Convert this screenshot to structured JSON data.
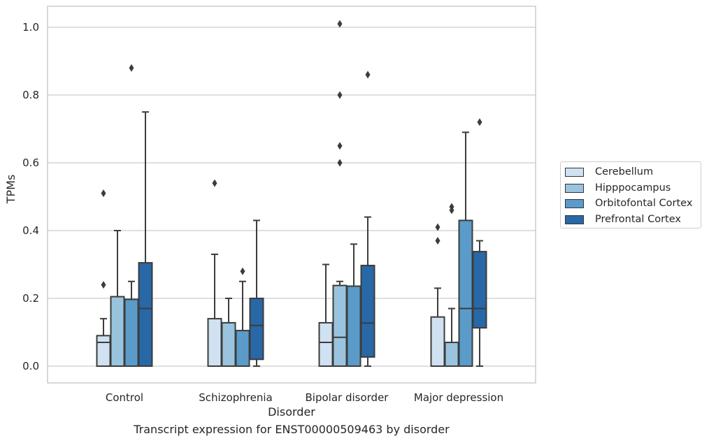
{
  "chart_data": {
    "type": "boxplot",
    "caption": "Transcript expression for ENST00000509463 by disorder",
    "xlabel": "Disorder",
    "ylabel": "TPMs",
    "ylim": [
      -0.05,
      1.06
    ],
    "yticks": [
      "0.0",
      "0.2",
      "0.4",
      "0.6",
      "0.8",
      "1.0"
    ],
    "grid": true,
    "legend_position": "right",
    "categories": [
      "Control",
      "Schizophrenia",
      "Bipolar disorder",
      "Major depression"
    ],
    "series": [
      {
        "name": "Cerebellum",
        "color": "#d0e1f1",
        "boxes": [
          {
            "whislo": 0.0,
            "q1": 0.0,
            "med": 0.07,
            "q3": 0.09,
            "whishi": 0.14,
            "fliers": [
              0.24,
              0.51
            ]
          },
          {
            "whislo": 0.0,
            "q1": 0.0,
            "med": 0.0,
            "q3": 0.14,
            "whishi": 0.33,
            "fliers": [
              0.54
            ]
          },
          {
            "whislo": 0.0,
            "q1": 0.0,
            "med": 0.07,
            "q3": 0.128,
            "whishi": 0.3,
            "fliers": []
          },
          {
            "whislo": 0.0,
            "q1": 0.0,
            "med": 0.0,
            "q3": 0.145,
            "whishi": 0.23,
            "fliers": [
              0.37,
              0.41
            ]
          }
        ]
      },
      {
        "name": "Hipppocampus",
        "color": "#9ac4dd",
        "boxes": [
          {
            "whislo": 0.0,
            "q1": 0.0,
            "med": 0.0,
            "q3": 0.205,
            "whishi": 0.4,
            "fliers": []
          },
          {
            "whislo": 0.0,
            "q1": 0.0,
            "med": 0.0,
            "q3": 0.128,
            "whishi": 0.2,
            "fliers": []
          },
          {
            "whislo": 0.0,
            "q1": 0.0,
            "med": 0.085,
            "q3": 0.238,
            "whishi": 0.25,
            "fliers": [
              0.6,
              0.65,
              0.8,
              1.01
            ]
          },
          {
            "whislo": 0.0,
            "q1": 0.0,
            "med": 0.0,
            "q3": 0.07,
            "whishi": 0.17,
            "fliers": [
              0.46,
              0.47
            ]
          }
        ]
      },
      {
        "name": "Orbitofontal Cortex",
        "color": "#5a9bc9",
        "boxes": [
          {
            "whislo": 0.0,
            "q1": 0.0,
            "med": 0.0,
            "q3": 0.197,
            "whishi": 0.25,
            "fliers": [
              0.88
            ]
          },
          {
            "whislo": 0.0,
            "q1": 0.0,
            "med": 0.0,
            "q3": 0.105,
            "whishi": 0.25,
            "fliers": [
              0.28
            ]
          },
          {
            "whislo": 0.0,
            "q1": 0.0,
            "med": 0.0,
            "q3": 0.236,
            "whishi": 0.36,
            "fliers": []
          },
          {
            "whislo": 0.0,
            "q1": 0.0,
            "med": 0.17,
            "q3": 0.43,
            "whishi": 0.69,
            "fliers": []
          }
        ]
      },
      {
        "name": "Prefrontal Cortex",
        "color": "#2868a6",
        "boxes": [
          {
            "whislo": 0.0,
            "q1": 0.0,
            "med": 0.17,
            "q3": 0.305,
            "whishi": 0.75,
            "fliers": []
          },
          {
            "whislo": 0.0,
            "q1": 0.02,
            "med": 0.12,
            "q3": 0.2,
            "whishi": 0.43,
            "fliers": []
          },
          {
            "whislo": 0.0,
            "q1": 0.027,
            "med": 0.127,
            "q3": 0.297,
            "whishi": 0.44,
            "fliers": [
              0.86
            ]
          },
          {
            "whislo": 0.0,
            "q1": 0.113,
            "med": 0.17,
            "q3": 0.338,
            "whishi": 0.37,
            "fliers": [
              0.72
            ]
          }
        ]
      }
    ]
  }
}
